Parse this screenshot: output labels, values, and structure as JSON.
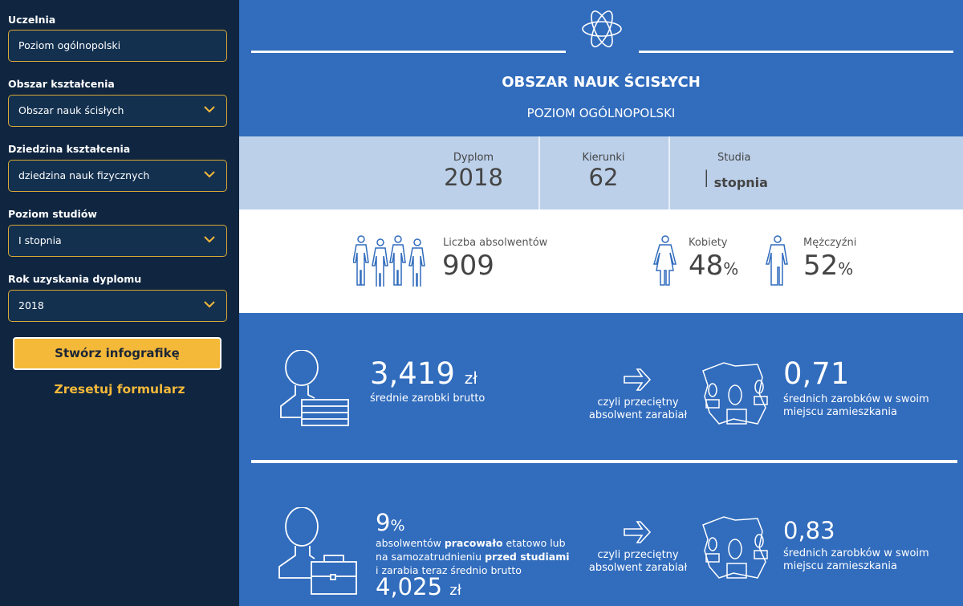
{
  "sidebar": {
    "fields": [
      {
        "label": "Uczelnia",
        "value": "Poziom ogólnopolski",
        "dropdown": false
      },
      {
        "label": "Obszar kształcenia",
        "value": "Obszar nauk ścisłych",
        "dropdown": true
      },
      {
        "label": "Dziedzina kształcenia",
        "value": "dziedzina nauk fizycznych",
        "dropdown": true
      },
      {
        "label": "Poziom studiów",
        "value": "I stopnia",
        "dropdown": true
      },
      {
        "label": "Rok uzyskania dyplomu",
        "value": "2018",
        "dropdown": true
      }
    ],
    "create_button": "Stwórz infografikę",
    "reset_link": "Zresetuj formularz"
  },
  "colors": {
    "sidebar_bg": "#0f2540",
    "accent": "#f5b93a",
    "main_blue": "#316cbd",
    "light_band": "#bcd0ea"
  },
  "header": {
    "icon": "atom-icon",
    "title": "OBSZAR NAUK ŚCISŁYCH",
    "subtitle": "POZIOM OGÓLNOPOLSKI"
  },
  "band": {
    "diploma_label": "Dyplom",
    "diploma_value": "2018",
    "majors_label": "Kierunki",
    "majors_value": "62",
    "studies_label": "Studia",
    "studies_value_roman": "I",
    "studies_value_text": "stopnia"
  },
  "graduates": {
    "label": "Liczba absolwentów",
    "value": "909",
    "women_label": "Kobiety",
    "women_value": "48",
    "men_label": "Mężczyźni",
    "men_value": "52",
    "pct": "%"
  },
  "earnings": {
    "value": "3,419",
    "unit": "zł",
    "label": "średnie zarobki brutto",
    "arrow_text_1": "czyli przeciętny",
    "arrow_text_2": "absolwent zarabiał",
    "ratio": "0,71",
    "ratio_label_1": "średnich zarobków w swoim",
    "ratio_label_2": "miejscu zamieszkania"
  },
  "prior_work": {
    "pct_value": "9",
    "pct": "%",
    "t1": "absolwentów ",
    "b1": "pracowało",
    "t2": " etatowo lub",
    "t3": "na samozatrudnieniu ",
    "b2": "przed studiami",
    "t4": "i zarabia teraz średnio brutto",
    "value": "4,025",
    "unit": "zł",
    "arrow_text_1": "czyli przeciętny",
    "arrow_text_2": "absolwent zarabiał",
    "ratio": "0,83",
    "ratio_label_1": "średnich zarobków w swoim",
    "ratio_label_2": "miejscu zamieszkania"
  }
}
